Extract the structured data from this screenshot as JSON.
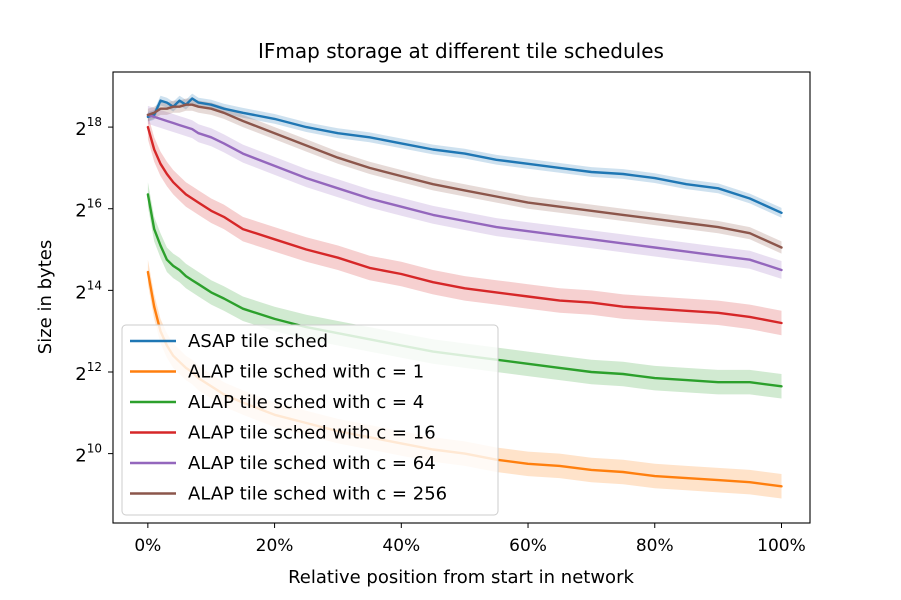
{
  "chart_data": {
    "type": "line",
    "title": "IFmap storage at different tile schedules",
    "xlabel": "Relative position from start in network",
    "ylabel": "Size in bytes",
    "x_ticks": [
      {
        "value": 0,
        "label": "0%"
      },
      {
        "value": 0.2,
        "label": "20%"
      },
      {
        "value": 0.4,
        "label": "40%"
      },
      {
        "value": 0.6,
        "label": "60%"
      },
      {
        "value": 0.8,
        "label": "80%"
      },
      {
        "value": 1.0,
        "label": "100%"
      }
    ],
    "y_ticks": [
      {
        "value": 10,
        "base": "2",
        "exp": "10"
      },
      {
        "value": 12,
        "base": "2",
        "exp": "12"
      },
      {
        "value": 14,
        "base": "2",
        "exp": "14"
      },
      {
        "value": 16,
        "base": "2",
        "exp": "16"
      },
      {
        "value": 18,
        "base": "2",
        "exp": "18"
      }
    ],
    "xlim": [
      -0.055,
      1.045
    ],
    "ylim_log2": [
      8.3,
      19.35
    ],
    "y_scale": "log2",
    "grid": false,
    "legend_position": "lower-left",
    "x": [
      0,
      0.01,
      0.02,
      0.03,
      0.04,
      0.05,
      0.06,
      0.07,
      0.08,
      0.1,
      0.12,
      0.15,
      0.2,
      0.25,
      0.3,
      0.35,
      0.4,
      0.45,
      0.5,
      0.55,
      0.6,
      0.65,
      0.7,
      0.75,
      0.8,
      0.85,
      0.9,
      0.95,
      1.0
    ],
    "series": [
      {
        "name": "ASAP tile sched",
        "color": "#1f77b4",
        "values_log2": [
          18.25,
          18.3,
          18.65,
          18.6,
          18.5,
          18.65,
          18.55,
          18.7,
          18.6,
          18.55,
          18.45,
          18.35,
          18.2,
          18.0,
          17.85,
          17.75,
          17.6,
          17.45,
          17.35,
          17.2,
          17.1,
          17.0,
          16.9,
          16.85,
          16.75,
          16.6,
          16.5,
          16.25,
          15.9
        ],
        "band": 0.12
      },
      {
        "name": "ALAP tile sched with c = 1",
        "color": "#ff7f0e",
        "values_log2": [
          14.45,
          13.6,
          13.0,
          12.65,
          12.4,
          12.25,
          12.1,
          12.0,
          11.85,
          11.65,
          11.45,
          11.25,
          10.95,
          10.75,
          10.55,
          10.4,
          10.25,
          10.1,
          10.0,
          9.85,
          9.75,
          9.7,
          9.6,
          9.55,
          9.45,
          9.4,
          9.35,
          9.3,
          9.2
        ],
        "band": 0.3
      },
      {
        "name": "ALAP tile sched with c = 4",
        "color": "#2ca02c",
        "values_log2": [
          16.35,
          15.5,
          15.1,
          14.75,
          14.6,
          14.5,
          14.35,
          14.25,
          14.15,
          13.95,
          13.8,
          13.55,
          13.3,
          13.1,
          12.95,
          12.8,
          12.65,
          12.5,
          12.4,
          12.3,
          12.2,
          12.1,
          12.0,
          11.95,
          11.85,
          11.8,
          11.75,
          11.75,
          11.65
        ],
        "band": 0.3
      },
      {
        "name": "ALAP tile sched with c = 16",
        "color": "#d62728",
        "values_log2": [
          18.0,
          17.45,
          17.1,
          16.85,
          16.65,
          16.5,
          16.35,
          16.25,
          16.15,
          15.95,
          15.8,
          15.5,
          15.25,
          15.0,
          14.8,
          14.55,
          14.4,
          14.2,
          14.05,
          13.95,
          13.85,
          13.75,
          13.7,
          13.6,
          13.55,
          13.5,
          13.45,
          13.35,
          13.2
        ],
        "band": 0.3
      },
      {
        "name": "ALAP tile sched with c = 64",
        "color": "#9467bd",
        "values_log2": [
          18.3,
          18.25,
          18.2,
          18.15,
          18.1,
          18.05,
          18.0,
          17.95,
          17.85,
          17.75,
          17.6,
          17.35,
          17.05,
          16.75,
          16.5,
          16.25,
          16.05,
          15.85,
          15.7,
          15.55,
          15.45,
          15.35,
          15.25,
          15.15,
          15.05,
          14.95,
          14.85,
          14.75,
          14.5
        ],
        "band": 0.22
      },
      {
        "name": "ALAP tile sched with c = 256",
        "color": "#8c564b",
        "values_log2": [
          18.3,
          18.35,
          18.45,
          18.45,
          18.5,
          18.5,
          18.55,
          18.55,
          18.5,
          18.45,
          18.35,
          18.15,
          17.85,
          17.55,
          17.25,
          17.0,
          16.8,
          16.6,
          16.45,
          16.3,
          16.15,
          16.05,
          15.95,
          15.85,
          15.75,
          15.65,
          15.55,
          15.4,
          15.05
        ],
        "band": 0.15
      }
    ]
  }
}
